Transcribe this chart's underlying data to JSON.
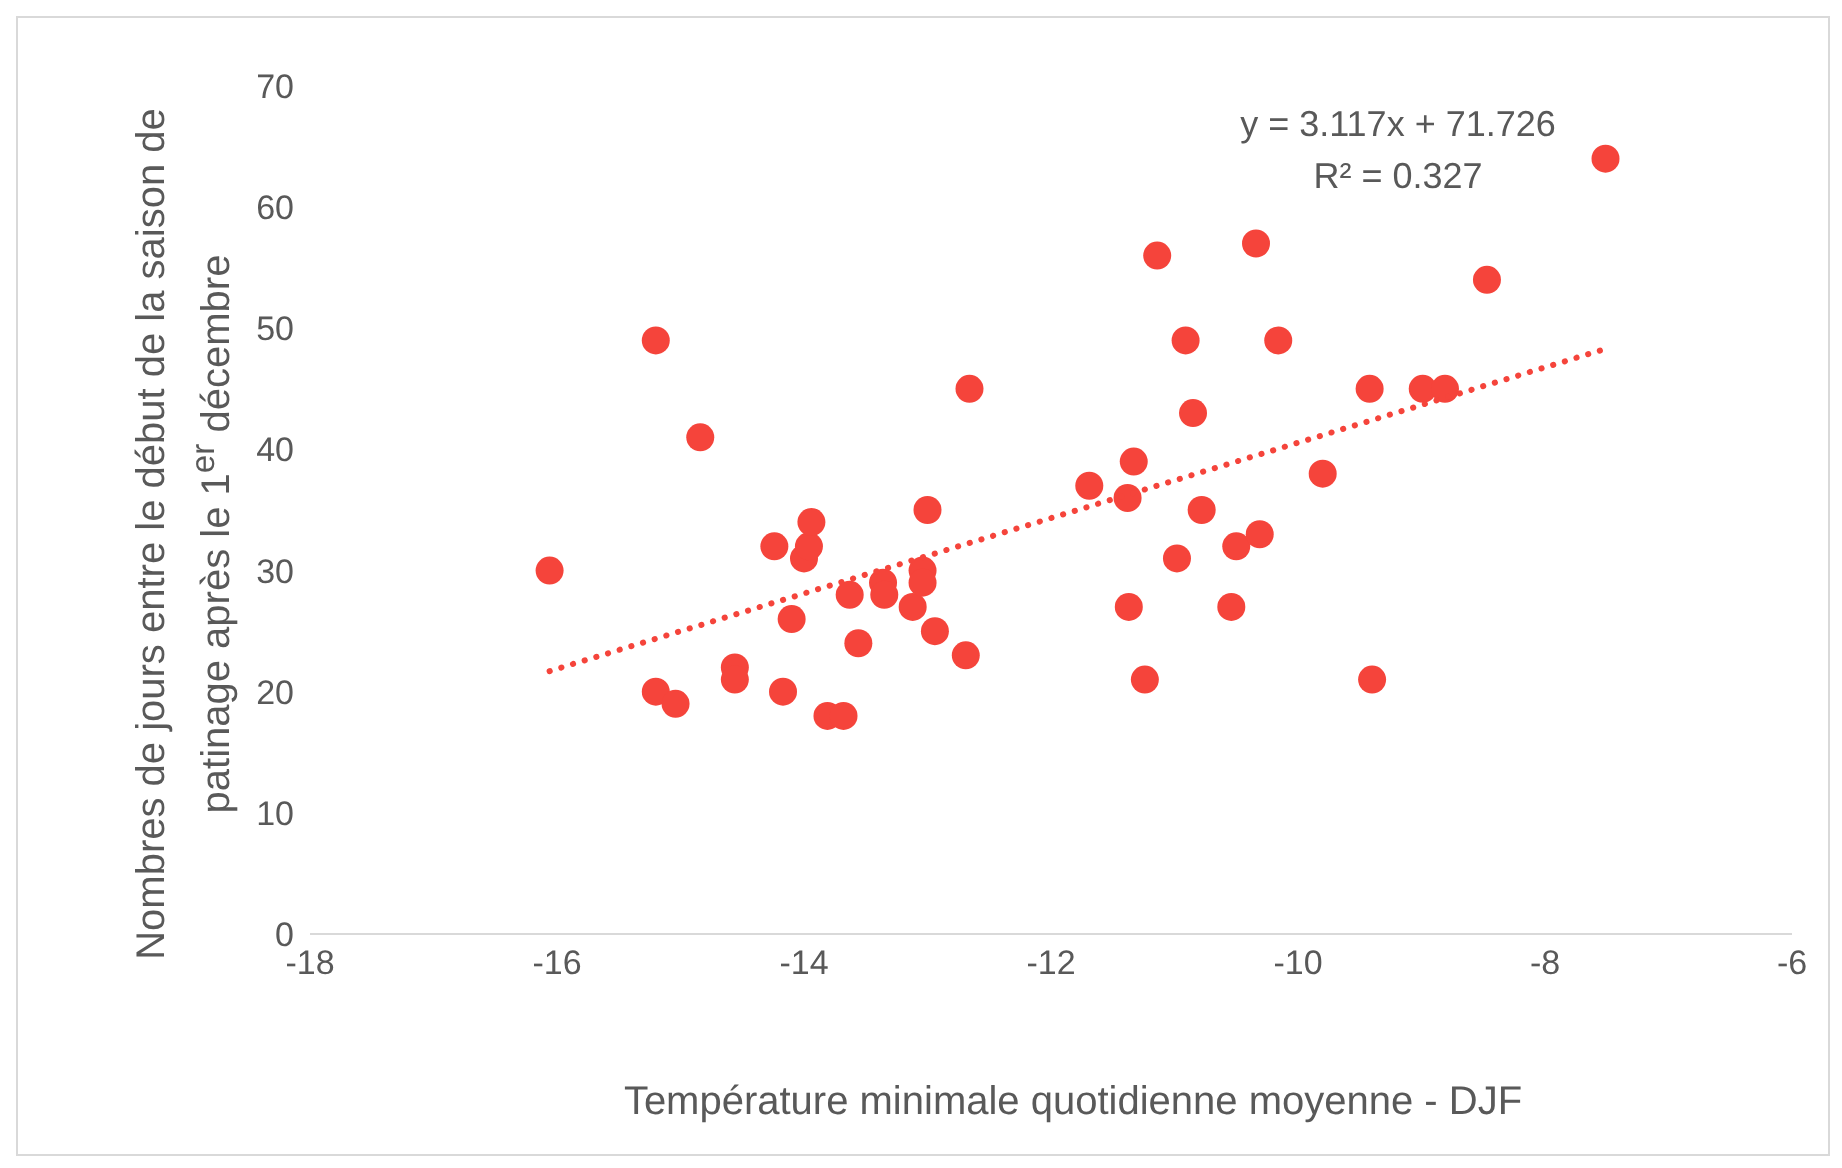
{
  "chart_data": {
    "type": "scatter",
    "xlabel": "Température minimale quotidienne moyenne - DJF",
    "ylabel": "Nombres de jours entre le début de la saison de patinage après le 1$^{er}$ décembre",
    "annotations": [
      "y = 3.117x + 71.726",
      "R² = 0.327"
    ],
    "xlim": [
      -18,
      -6
    ],
    "xticks": [
      -18,
      -16,
      -14,
      -12,
      -10,
      -8,
      -6
    ],
    "ylim": [
      0,
      70
    ],
    "yticks": [
      0,
      10,
      20,
      30,
      40,
      50,
      60,
      70
    ],
    "grid": false,
    "marker": "circle",
    "series": [
      {
        "color": "#f5443b",
        "x": [
          -16.06,
          -15.2,
          -15.2,
          -15.04,
          -14.84,
          -14.56,
          -14.56,
          -14.24,
          -14.17,
          -14.1,
          -14.0,
          -13.96,
          -13.94,
          -13.81,
          -13.68,
          -13.63,
          -13.56,
          -13.36,
          -13.35,
          -13.12,
          -13.04,
          -13.04,
          -13.0,
          -12.94,
          -12.69,
          -12.66,
          -11.69,
          -11.38,
          -11.37,
          -11.33,
          -11.24,
          -11.14,
          -10.98,
          -10.91,
          -10.85,
          -10.78,
          -10.54,
          -10.5,
          -10.34,
          -10.31,
          -10.16,
          -9.8,
          -9.42,
          -9.4,
          -8.99,
          -8.81,
          -8.47,
          -7.51
        ],
        "values": [
          30,
          49,
          20,
          19,
          41,
          22,
          21,
          32,
          20,
          26,
          31,
          32,
          34,
          18,
          18,
          28,
          24,
          29,
          28,
          27,
          30,
          29,
          35,
          25,
          23,
          45,
          37,
          36,
          27,
          39,
          21,
          56,
          31,
          49,
          43,
          35,
          27,
          32,
          57,
          33,
          49,
          38,
          45,
          21,
          45,
          45,
          54,
          64
        ]
      },
      {
        "type": "line",
        "color": "#f5443b",
        "line_style": "dotted",
        "marker": "none",
        "x": [
          -16.06,
          -7.51
        ],
        "values": [
          21.7,
          48.3
        ]
      }
    ]
  }
}
